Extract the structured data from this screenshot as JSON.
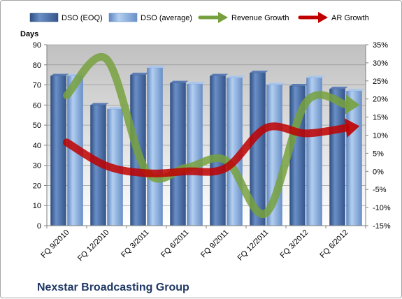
{
  "chart_data": {
    "type": "bar",
    "title": "Nexstar Broadcasting Group",
    "ylabel": "Days",
    "ylim": [
      0,
      90
    ],
    "y2lim": [
      -15,
      35
    ],
    "y_ticks": [
      "0",
      "10",
      "20",
      "30",
      "40",
      "50",
      "60",
      "70",
      "80",
      "90"
    ],
    "y2_ticks": [
      "-15%",
      "-10%",
      "-5%",
      "0%",
      "5%",
      "10%",
      "15%",
      "20%",
      "25%",
      "30%",
      "35%"
    ],
    "categories": [
      "FQ 9/2010",
      "FQ 12/2010",
      "FQ 3/2011",
      "FQ 6/2011",
      "FQ 9/2011",
      "FQ 12/2011",
      "FQ 3/2012",
      "FQ 6/2012"
    ],
    "legend_position": "top",
    "grid": true,
    "series": [
      {
        "name": "DSO (EOQ)",
        "kind": "bar",
        "axis": "left",
        "color": "#4a6fa8",
        "values": [
          74.5,
          60,
          75,
          71,
          74.5,
          76,
          69.5,
          68
        ]
      },
      {
        "name": "DSO (average)",
        "kind": "bar",
        "axis": "left",
        "color": "#8fb4e3",
        "values": [
          74.5,
          58,
          78.5,
          70.5,
          73.5,
          70,
          73.5,
          67
        ]
      },
      {
        "name": "Revenue Growth",
        "kind": "line-arrow",
        "axis": "right",
        "color": "#77a13e",
        "values": [
          21,
          31,
          0,
          1,
          3,
          -11.5,
          19,
          18.5
        ]
      },
      {
        "name": "AR Growth",
        "kind": "line-arrow",
        "axis": "right",
        "color": "#c00000",
        "values": [
          8,
          1.5,
          -0.5,
          0,
          1,
          12,
          10.5,
          12
        ]
      }
    ]
  }
}
